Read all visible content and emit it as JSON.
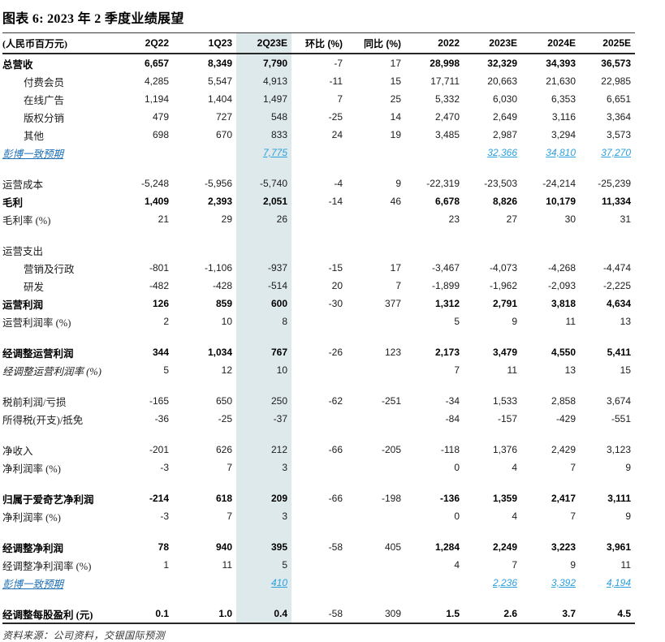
{
  "title": "图表 6: 2023 年 2 季度业绩展望",
  "footer": "资料来源：公司资料，交银国际预测",
  "colors": {
    "text": "#1c1c1c",
    "highlight": "#dee9ec",
    "link_label": "#1c70b8",
    "link_value": "#2ba0de"
  },
  "table": {
    "unit_header": "(人民币百万元)",
    "columns": [
      "2Q22",
      "1Q23",
      "2Q23E",
      "环比 (%)",
      "同比 (%)",
      "2022",
      "2023E",
      "2024E",
      "2025E"
    ],
    "highlight_column": "2Q23E",
    "rows": [
      {
        "label": "总营收",
        "style": "bold",
        "values": [
          "6,657",
          "8,349",
          "7,790",
          "-7",
          "17",
          "28,998",
          "32,329",
          "34,393",
          "36,573"
        ]
      },
      {
        "label": "付费会员",
        "indent": 1,
        "values": [
          "4,285",
          "5,547",
          "4,913",
          "-11",
          "15",
          "17,711",
          "20,663",
          "21,630",
          "22,985"
        ]
      },
      {
        "label": "在线广告",
        "indent": 1,
        "values": [
          "1,194",
          "1,404",
          "1,497",
          "7",
          "25",
          "5,332",
          "6,030",
          "6,353",
          "6,651"
        ]
      },
      {
        "label": "版权分销",
        "indent": 1,
        "values": [
          "479",
          "727",
          "548",
          "-25",
          "14",
          "2,470",
          "2,649",
          "3,116",
          "3,364"
        ]
      },
      {
        "label": "其他",
        "indent": 1,
        "values": [
          "698",
          "670",
          "833",
          "24",
          "19",
          "3,485",
          "2,987",
          "3,294",
          "3,573"
        ]
      },
      {
        "label": "彭博一致预期",
        "style": "link",
        "values": [
          "",
          "",
          "7,775",
          "",
          "",
          "",
          "32,366",
          "34,810",
          "37,270"
        ]
      },
      {
        "blank": true
      },
      {
        "label": "运营成本",
        "values": [
          "-5,248",
          "-5,956",
          "-5,740",
          "-4",
          "9",
          "-22,319",
          "-23,503",
          "-24,214",
          "-25,239"
        ]
      },
      {
        "label": "毛利",
        "style": "bold",
        "values": [
          "1,409",
          "2,393",
          "2,051",
          "-14",
          "46",
          "6,678",
          "8,826",
          "10,179",
          "11,334"
        ]
      },
      {
        "label": "毛利率 (%)",
        "values": [
          "21",
          "29",
          "26",
          "",
          "",
          "23",
          "27",
          "30",
          "31"
        ]
      },
      {
        "blank": true
      },
      {
        "label": "运营支出",
        "values": [
          "",
          "",
          "",
          "",
          "",
          "",
          "",
          "",
          ""
        ]
      },
      {
        "label": "营销及行政",
        "indent": 1,
        "values": [
          "-801",
          "-1,106",
          "-937",
          "-15",
          "17",
          "-3,467",
          "-4,073",
          "-4,268",
          "-4,474"
        ]
      },
      {
        "label": "研发",
        "indent": 1,
        "values": [
          "-482",
          "-428",
          "-514",
          "20",
          "7",
          "-1,899",
          "-1,962",
          "-2,093",
          "-2,225"
        ]
      },
      {
        "label": "运营利润",
        "style": "bold",
        "values": [
          "126",
          "859",
          "600",
          "-30",
          "377",
          "1,312",
          "2,791",
          "3,818",
          "4,634"
        ]
      },
      {
        "label": "运营利润率 (%)",
        "values": [
          "2",
          "10",
          "8",
          "",
          "",
          "5",
          "9",
          "11",
          "13"
        ]
      },
      {
        "blank": true
      },
      {
        "label": "经调整运营利润",
        "style": "bold",
        "values": [
          "344",
          "1,034",
          "767",
          "-26",
          "123",
          "2,173",
          "3,479",
          "4,550",
          "5,411"
        ]
      },
      {
        "label": "经调整运营利润率 (%)",
        "style": "italic",
        "values": [
          "5",
          "12",
          "10",
          "",
          "",
          "7",
          "11",
          "13",
          "15"
        ]
      },
      {
        "blank": true
      },
      {
        "label": "税前利润/亏损",
        "values": [
          "-165",
          "650",
          "250",
          "-62",
          "-251",
          "-34",
          "1,533",
          "2,858",
          "3,674"
        ]
      },
      {
        "label": "所得税(开支)/抵免",
        "values": [
          "-36",
          "-25",
          "-37",
          "",
          "",
          "-84",
          "-157",
          "-429",
          "-551"
        ]
      },
      {
        "blank": true
      },
      {
        "label": "净收入",
        "values": [
          "-201",
          "626",
          "212",
          "-66",
          "-205",
          "-118",
          "1,376",
          "2,429",
          "3,123"
        ]
      },
      {
        "label": "净利润率 (%)",
        "values": [
          "-3",
          "7",
          "3",
          "",
          "",
          "0",
          "4",
          "7",
          "9"
        ]
      },
      {
        "blank": true
      },
      {
        "label": "归属于爱奇艺净利润",
        "style": "bold",
        "values": [
          "-214",
          "618",
          "209",
          "-66",
          "-198",
          "-136",
          "1,359",
          "2,417",
          "3,111"
        ]
      },
      {
        "label": "净利润率 (%)",
        "values": [
          "-3",
          "7",
          "3",
          "",
          "",
          "0",
          "4",
          "7",
          "9"
        ]
      },
      {
        "blank": true
      },
      {
        "label": "经调整净利润",
        "style": "bold",
        "values": [
          "78",
          "940",
          "395",
          "-58",
          "405",
          "1,284",
          "2,249",
          "3,223",
          "3,961"
        ]
      },
      {
        "label": "经调整净利润率 (%)",
        "values": [
          "1",
          "11",
          "5",
          "",
          "",
          "4",
          "7",
          "9",
          "11"
        ]
      },
      {
        "label": "彭博一致预期",
        "style": "link",
        "values": [
          "",
          "",
          "410",
          "",
          "",
          "",
          "2,236",
          "3,392",
          "4,194"
        ]
      },
      {
        "blank": true
      },
      {
        "label": "经调整每股盈利 (元)",
        "style": "bold",
        "values": [
          "0.1",
          "1.0",
          "0.4",
          "-58",
          "309",
          "1.5",
          "2.6",
          "3.7",
          "4.5"
        ]
      }
    ]
  }
}
